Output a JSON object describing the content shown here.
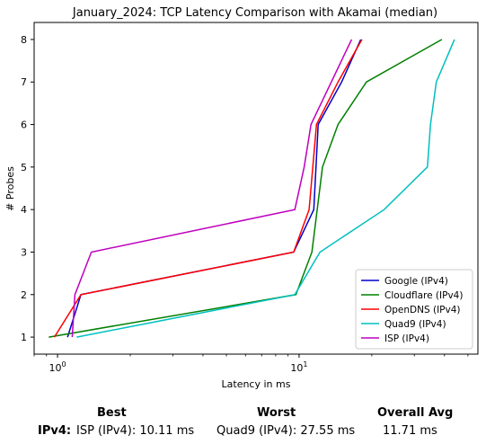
{
  "chart_data": {
    "type": "line",
    "title": "January_2024: TCP Latency Comparison with Akamai (median)",
    "xlabel": "Latency in ms",
    "ylabel": "# Probes",
    "xscale": "log",
    "xlim": [
      0.8,
      55
    ],
    "ylim": [
      0.6,
      8.4
    ],
    "xticks": [
      1,
      10
    ],
    "xtick_labels": [
      "10^0",
      "10^1"
    ],
    "yticks": [
      1,
      2,
      3,
      4,
      5,
      6,
      7,
      8
    ],
    "legend_position": "lower-right",
    "grid": false,
    "series": [
      {
        "name": "Google (IPv4)",
        "color": "#0000cc",
        "points": [
          [
            1.1,
            1
          ],
          [
            1.25,
            2
          ],
          [
            9.5,
            3
          ],
          [
            11.5,
            4
          ],
          [
            12.0,
            6
          ],
          [
            15.0,
            7
          ],
          [
            18.0,
            8
          ]
        ]
      },
      {
        "name": "Cloudflare (IPv4)",
        "color": "#008000",
        "points": [
          [
            0.92,
            1
          ],
          [
            9.7,
            2
          ],
          [
            11.3,
            3
          ],
          [
            12.5,
            5
          ],
          [
            14.5,
            6
          ],
          [
            19.0,
            7
          ],
          [
            39.0,
            8
          ]
        ]
      },
      {
        "name": "OpenDNS (IPv4)",
        "color": "#ff0000",
        "points": [
          [
            0.97,
            1
          ],
          [
            1.25,
            2
          ],
          [
            9.5,
            3
          ],
          [
            11.0,
            4
          ],
          [
            11.8,
            6
          ],
          [
            14.5,
            7
          ],
          [
            18.2,
            8
          ]
        ]
      },
      {
        "name": "Quad9 (IPv4)",
        "color": "#00bfbf",
        "points": [
          [
            1.2,
            1
          ],
          [
            9.6,
            2
          ],
          [
            12.2,
            3
          ],
          [
            22.5,
            4
          ],
          [
            34.0,
            5
          ],
          [
            35.0,
            6
          ],
          [
            37.0,
            7
          ],
          [
            44.0,
            8
          ]
        ]
      },
      {
        "name": "ISP (IPv4)",
        "color": "#bf00bf",
        "points": [
          [
            1.15,
            1
          ],
          [
            1.18,
            2
          ],
          [
            1.38,
            3
          ],
          [
            9.6,
            4
          ],
          [
            10.5,
            5
          ],
          [
            11.2,
            6
          ],
          [
            16.5,
            8
          ]
        ]
      }
    ]
  },
  "stats": {
    "headers": {
      "best": "Best",
      "worst": "Worst",
      "overall": "Overall Avg"
    },
    "row_label": "IPv4",
    "row_sep": ":",
    "best": "ISP (IPv4): 10.11 ms",
    "worst": "Quad9 (IPv4): 27.55 ms",
    "overall": "11.71 ms"
  }
}
